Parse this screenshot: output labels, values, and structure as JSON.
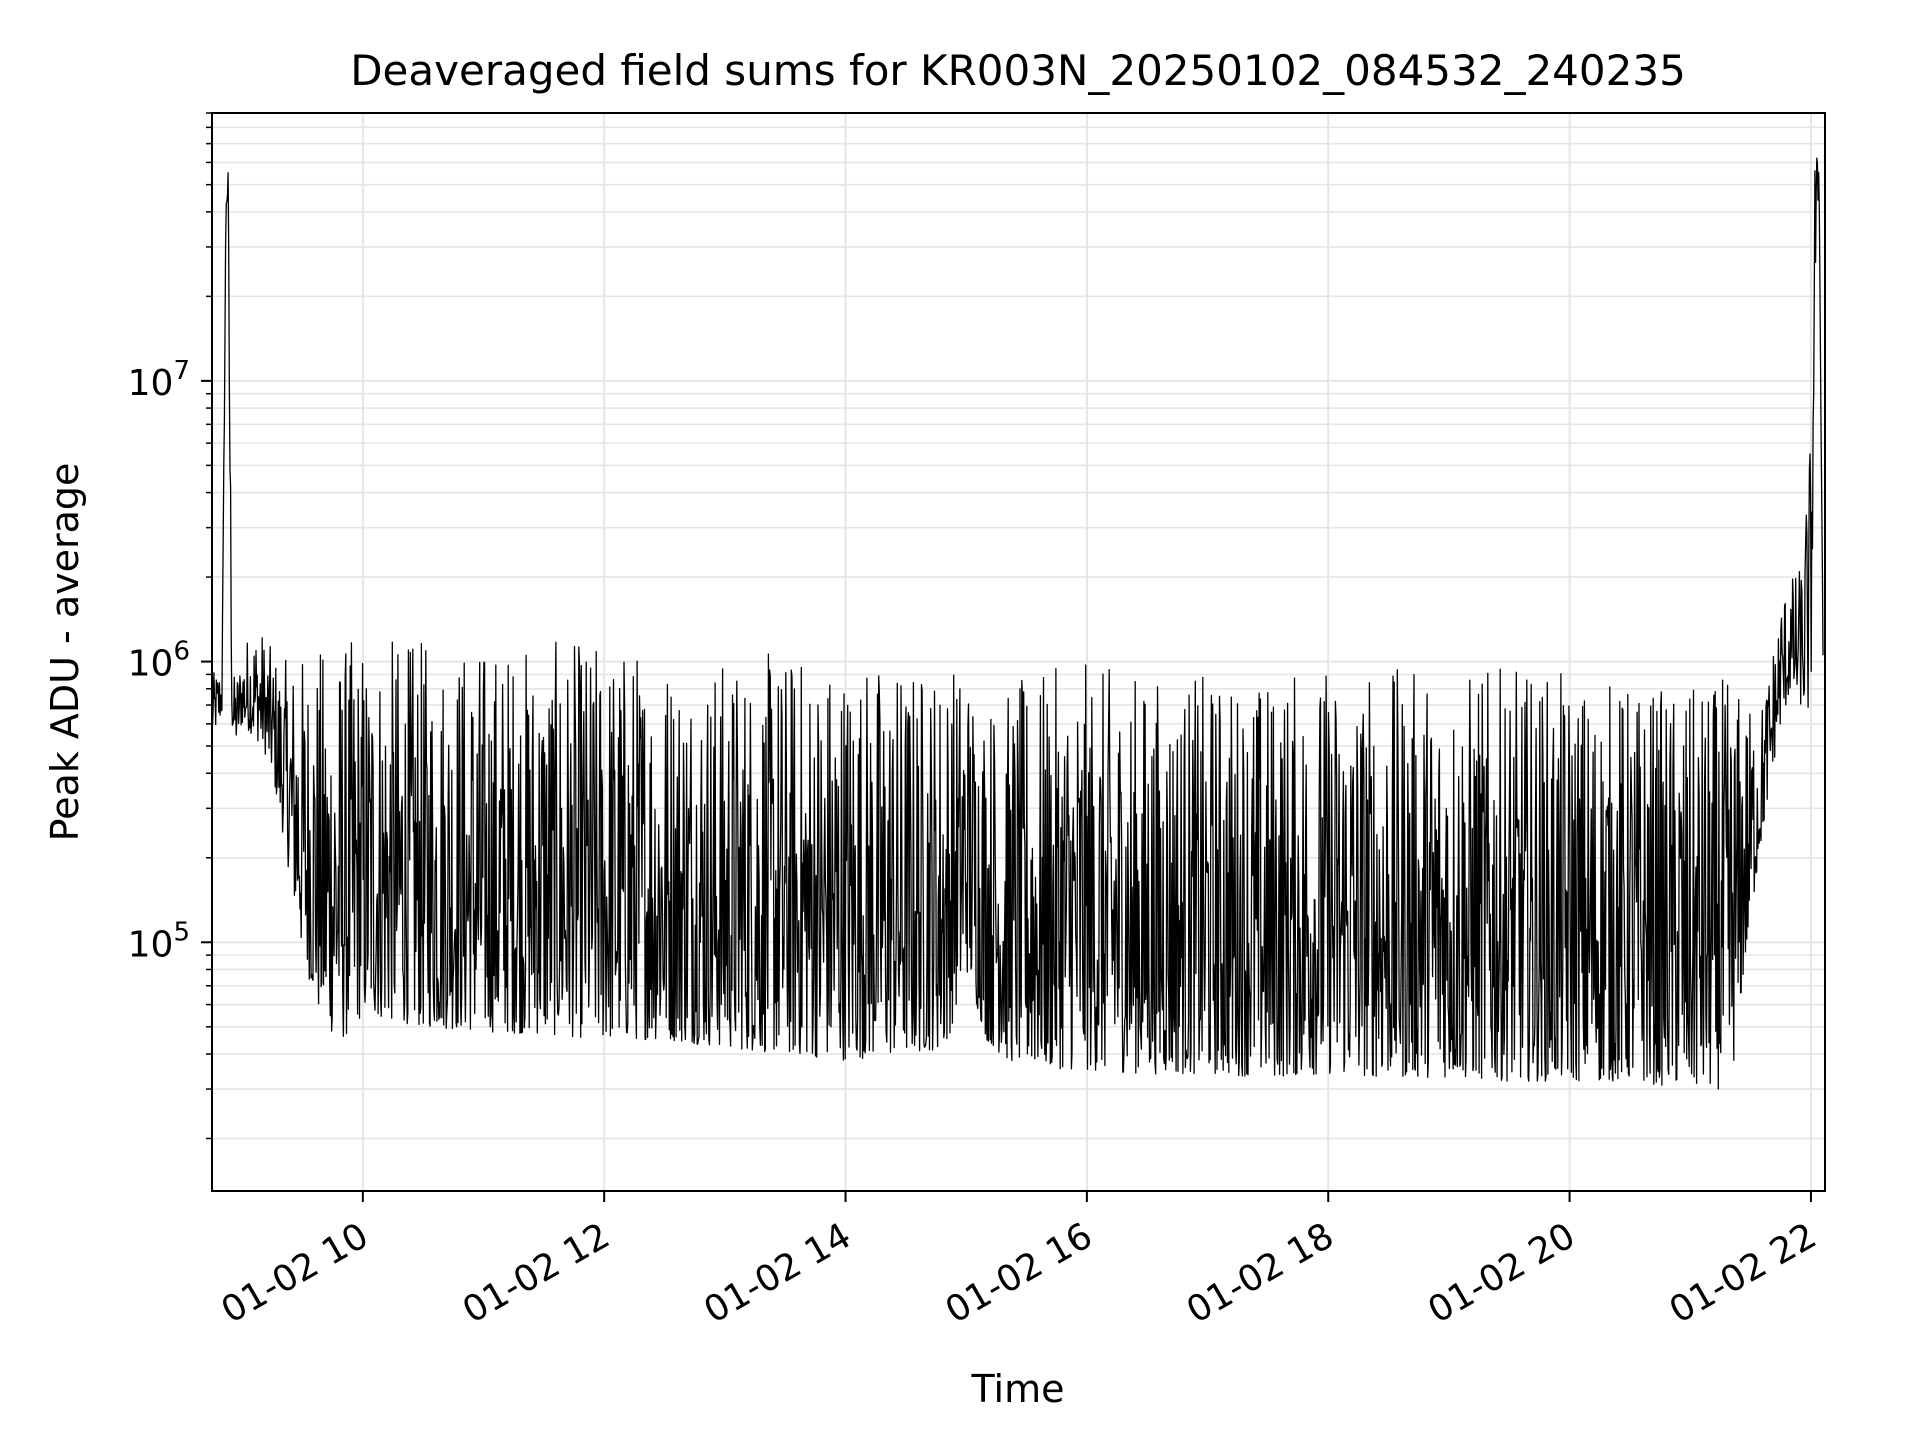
{
  "chart_data": {
    "type": "line",
    "title": "Deaveraged field sums for KR003N_20250102_084532_240235",
    "xlabel": "Time",
    "ylabel": "Peak ADU - average",
    "xscale": "time",
    "yscale": "log",
    "grid": true,
    "legend": "none",
    "xlim": [
      "2025-01-02T08:45",
      "2025-01-02T22:07"
    ],
    "ylim": [
      13000,
      90000000
    ],
    "x_ticks": [
      {
        "value": "2025-01-02T10:00",
        "label": "01-02 10"
      },
      {
        "value": "2025-01-02T12:00",
        "label": "01-02 12"
      },
      {
        "value": "2025-01-02T14:00",
        "label": "01-02 14"
      },
      {
        "value": "2025-01-02T16:00",
        "label": "01-02 16"
      },
      {
        "value": "2025-01-02T18:00",
        "label": "01-02 18"
      },
      {
        "value": "2025-01-02T20:00",
        "label": "01-02 20"
      },
      {
        "value": "2025-01-02T22:00",
        "label": "01-02 22"
      }
    ],
    "y_ticks": [
      {
        "value": 100000,
        "base": "10",
        "exp": "5"
      },
      {
        "value": 1000000,
        "base": "10",
        "exp": "6"
      },
      {
        "value": 10000000,
        "base": "10",
        "exp": "7"
      }
    ],
    "line_color": "#000000",
    "series": [
      {
        "x": [
          "2025-01-02T08:45",
          "2025-01-02T08:48",
          "2025-01-02T08:50",
          "2025-01-02T08:52",
          "2025-01-02T08:53",
          "2025-01-02T08:54",
          "2025-01-02T08:55",
          "2025-01-02T08:57",
          "2025-01-02T09:00",
          "2025-01-02T09:05",
          "2025-01-02T09:10",
          "2025-01-02T09:15",
          "2025-01-02T09:20",
          "2025-01-02T09:30",
          "2025-01-02T09:40",
          "2025-01-02T09:50",
          "2025-01-02T10:00",
          "2025-01-02T10:30",
          "2025-01-02T11:00",
          "2025-01-02T11:30",
          "2025-01-02T12:00",
          "2025-01-02T12:30",
          "2025-01-02T13:00",
          "2025-01-02T13:30",
          "2025-01-02T14:00",
          "2025-01-02T14:30",
          "2025-01-02T14:50",
          "2025-01-02T15:00",
          "2025-01-02T15:10",
          "2025-01-02T15:20",
          "2025-01-02T15:30",
          "2025-01-02T16:00",
          "2025-01-02T16:30",
          "2025-01-02T17:00",
          "2025-01-02T17:30",
          "2025-01-02T18:00",
          "2025-01-02T18:30",
          "2025-01-02T19:00",
          "2025-01-02T19:30",
          "2025-01-02T20:00",
          "2025-01-02T20:30",
          "2025-01-02T21:00",
          "2025-01-02T21:20",
          "2025-01-02T21:30",
          "2025-01-02T21:35",
          "2025-01-02T21:40",
          "2025-01-02T21:45",
          "2025-01-02T21:50",
          "2025-01-02T21:55",
          "2025-01-02T22:00",
          "2025-01-02T22:02",
          "2025-01-02T22:04",
          "2025-01-02T22:06"
        ],
        "low": [
          550000,
          600000,
          650000,
          40000000,
          45000000,
          3000000,
          550000,
          520000,
          600000,
          550000,
          500000,
          400000,
          250000,
          90000,
          50000,
          45000,
          55000,
          50000,
          48000,
          47000,
          45000,
          45000,
          42000,
          40000,
          38000,
          40000,
          42000,
          80000,
          45000,
          38000,
          36000,
          35000,
          34000,
          34000,
          33000,
          34000,
          33000,
          33000,
          32000,
          32000,
          32000,
          30000,
          30000,
          120000,
          220000,
          380000,
          600000,
          800000,
          700000,
          650000,
          20000000,
          55000000,
          1000000
        ],
        "high": [
          900000,
          950000,
          1000000,
          55000000,
          58000000,
          10000000,
          900000,
          900000,
          1100000,
          1400000,
          1300000,
          1100000,
          1000000,
          1100000,
          1150000,
          1200000,
          1250000,
          1200000,
          1200000,
          1180000,
          1200000,
          1150000,
          1050000,
          1100000,
          1100000,
          1000000,
          1050000,
          1000000,
          800000,
          800000,
          900000,
          1000000,
          900000,
          900000,
          900000,
          1000000,
          950000,
          950000,
          950000,
          900000,
          850000,
          800000,
          900000,
          700000,
          700000,
          1000000,
          1800000,
          2000000,
          2200000,
          6800000,
          70000000,
          60000000,
          1300000
        ]
      }
    ],
    "annotations": []
  }
}
